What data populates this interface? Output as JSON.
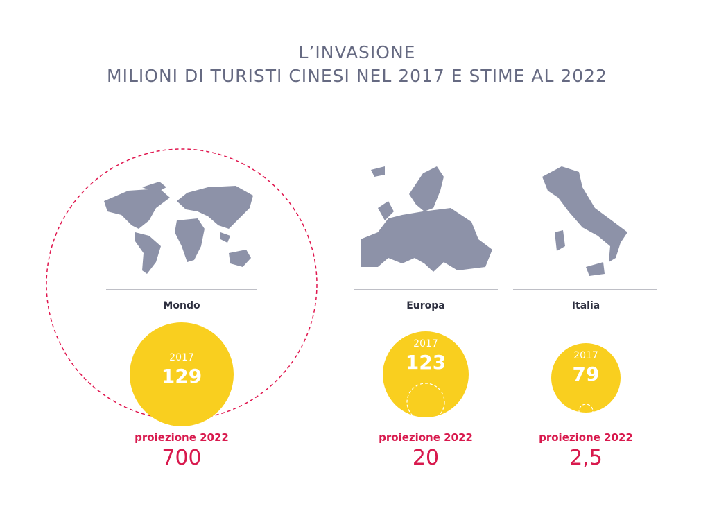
{
  "header": {
    "title": "L’INVASIONE",
    "subtitle": "MILIONI DI TURISTI CINESI NEL 2017 E STIME AL 2022"
  },
  "panels": [
    {
      "place": "Mondo",
      "year": "2017",
      "value": "129",
      "projection_label": "proiezione 2022",
      "projection": "700"
    },
    {
      "place": "Europa",
      "year": "2017",
      "value": "123",
      "projection_label": "proiezione 2022",
      "projection": "20"
    },
    {
      "place": "Italia",
      "year": "2017",
      "value": "79",
      "projection_label": "proiezione 2022",
      "projection": "2,5"
    }
  ]
}
